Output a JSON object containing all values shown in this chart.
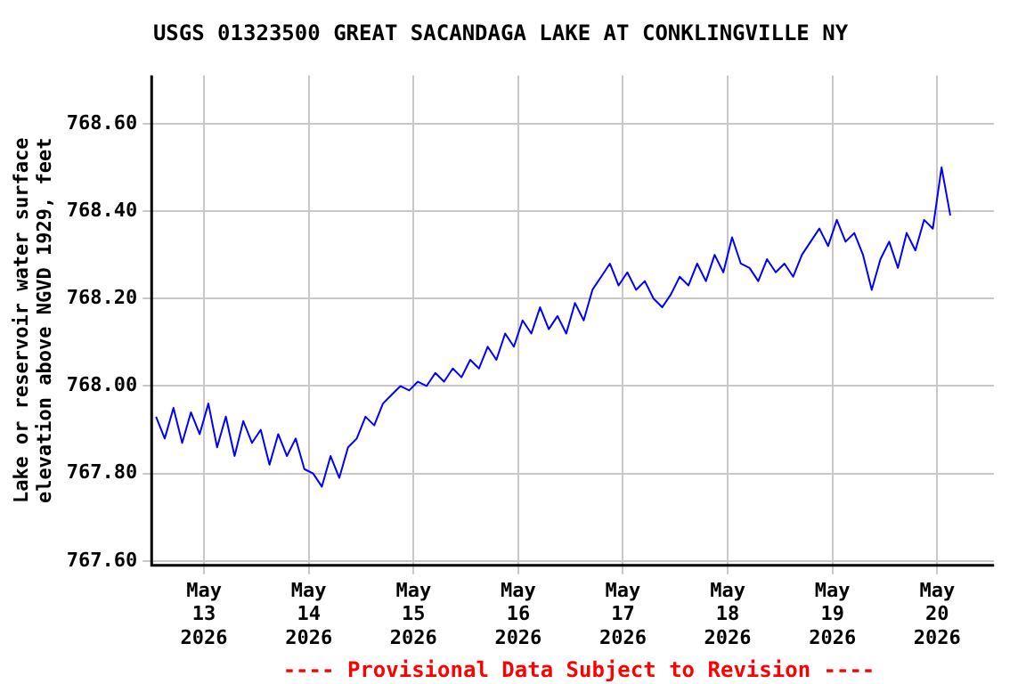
{
  "chart_data": {
    "type": "line",
    "title": "USGS 01323500 GREAT SACANDAGA LAKE AT CONKLINGVILLE NY",
    "ylabel": "Lake or reservoir water surface elevation above NGVD 1929, feet",
    "annotations": [
      "---- Provisional Data Subject to Revision ----"
    ],
    "x": [
      "2026-05-12T13:00",
      "2026-05-12T15:00",
      "2026-05-12T17:00",
      "2026-05-12T19:00",
      "2026-05-12T21:00",
      "2026-05-12T23:00",
      "2026-05-13T01:00",
      "2026-05-13T03:00",
      "2026-05-13T05:00",
      "2026-05-13T07:00",
      "2026-05-13T09:00",
      "2026-05-13T11:00",
      "2026-05-13T13:00",
      "2026-05-13T15:00",
      "2026-05-13T17:00",
      "2026-05-13T19:00",
      "2026-05-13T21:00",
      "2026-05-13T23:00",
      "2026-05-14T01:00",
      "2026-05-14T03:00",
      "2026-05-14T05:00",
      "2026-05-14T07:00",
      "2026-05-14T09:00",
      "2026-05-14T11:00",
      "2026-05-14T13:00",
      "2026-05-14T15:00",
      "2026-05-14T17:00",
      "2026-05-14T19:00",
      "2026-05-14T21:00",
      "2026-05-14T23:00",
      "2026-05-15T01:00",
      "2026-05-15T03:00",
      "2026-05-15T05:00",
      "2026-05-15T07:00",
      "2026-05-15T09:00",
      "2026-05-15T11:00",
      "2026-05-15T13:00",
      "2026-05-15T15:00",
      "2026-05-15T17:00",
      "2026-05-15T19:00",
      "2026-05-15T21:00",
      "2026-05-15T23:00",
      "2026-05-16T01:00",
      "2026-05-16T03:00",
      "2026-05-16T05:00",
      "2026-05-16T07:00",
      "2026-05-16T09:00",
      "2026-05-16T11:00",
      "2026-05-16T13:00",
      "2026-05-16T15:00",
      "2026-05-16T17:00",
      "2026-05-16T19:00",
      "2026-05-16T21:00",
      "2026-05-16T23:00",
      "2026-05-17T01:00",
      "2026-05-17T03:00",
      "2026-05-17T05:00",
      "2026-05-17T07:00",
      "2026-05-17T09:00",
      "2026-05-17T11:00",
      "2026-05-17T13:00",
      "2026-05-17T15:00",
      "2026-05-17T17:00",
      "2026-05-17T19:00",
      "2026-05-17T21:00",
      "2026-05-17T23:00",
      "2026-05-18T01:00",
      "2026-05-18T03:00",
      "2026-05-18T05:00",
      "2026-05-18T07:00",
      "2026-05-18T09:00",
      "2026-05-18T11:00",
      "2026-05-18T13:00",
      "2026-05-18T15:00",
      "2026-05-18T17:00",
      "2026-05-18T19:00",
      "2026-05-18T21:00",
      "2026-05-18T23:00",
      "2026-05-19T01:00",
      "2026-05-19T03:00",
      "2026-05-19T05:00",
      "2026-05-19T07:00",
      "2026-05-19T09:00",
      "2026-05-19T11:00",
      "2026-05-19T13:00",
      "2026-05-19T15:00",
      "2026-05-19T17:00",
      "2026-05-19T19:00",
      "2026-05-19T21:00",
      "2026-05-19T23:00",
      "2026-05-20T01:00",
      "2026-05-20T03:00"
    ],
    "series": [
      {
        "color": "#0000ff",
        "values": [
          767.93,
          767.88,
          767.95,
          767.87,
          767.94,
          767.89,
          767.96,
          767.86,
          767.93,
          767.84,
          767.92,
          767.87,
          767.9,
          767.82,
          767.89,
          767.84,
          767.88,
          767.81,
          767.8,
          767.77,
          767.84,
          767.79,
          767.86,
          767.88,
          767.93,
          767.91,
          767.96,
          767.98,
          768.0,
          767.99,
          768.01,
          768.0,
          768.03,
          768.01,
          768.04,
          768.02,
          768.06,
          768.04,
          768.09,
          768.06,
          768.12,
          768.09,
          768.15,
          768.12,
          768.18,
          768.13,
          768.16,
          768.12,
          768.19,
          768.15,
          768.22,
          768.25,
          768.28,
          768.23,
          768.26,
          768.22,
          768.24,
          768.2,
          768.18,
          768.21,
          768.25,
          768.23,
          768.28,
          768.24,
          768.3,
          768.26,
          768.34,
          768.28,
          768.27,
          768.24,
          768.29,
          768.26,
          768.28,
          768.25,
          768.3,
          768.33,
          768.36,
          768.32,
          768.38,
          768.33,
          768.35,
          768.3,
          768.22,
          768.29,
          768.33,
          768.27,
          768.35,
          768.31,
          768.38,
          768.36,
          768.5,
          768.39
        ]
      }
    ],
    "xlim": [
      "2026-05-12T12:00",
      "2026-05-20T13:00"
    ],
    "xticks": [
      {
        "value": "2026-05-13",
        "label": "May 13 2026"
      },
      {
        "value": "2026-05-14",
        "label": "May 14 2026"
      },
      {
        "value": "2026-05-15",
        "label": "May 15 2026"
      },
      {
        "value": "2026-05-16",
        "label": "May 16 2026"
      },
      {
        "value": "2026-05-17",
        "label": "May 17 2026"
      },
      {
        "value": "2026-05-18",
        "label": "May 18 2026"
      },
      {
        "value": "2026-05-19",
        "label": "May 19 2026"
      },
      {
        "value": "2026-05-20",
        "label": "May 20 2026"
      }
    ],
    "ylim": [
      767.59,
      768.71
    ],
    "yticks": [
      {
        "value": 767.6,
        "label": "767.60"
      },
      {
        "value": 767.8,
        "label": "767.80"
      },
      {
        "value": 768.0,
        "label": "768.00"
      },
      {
        "value": 768.2,
        "label": "768.20"
      },
      {
        "value": 768.4,
        "label": "768.40"
      },
      {
        "value": 768.6,
        "label": "768.60"
      }
    ],
    "grid": true,
    "legend": false,
    "marker": "none",
    "line_style": "solid"
  }
}
